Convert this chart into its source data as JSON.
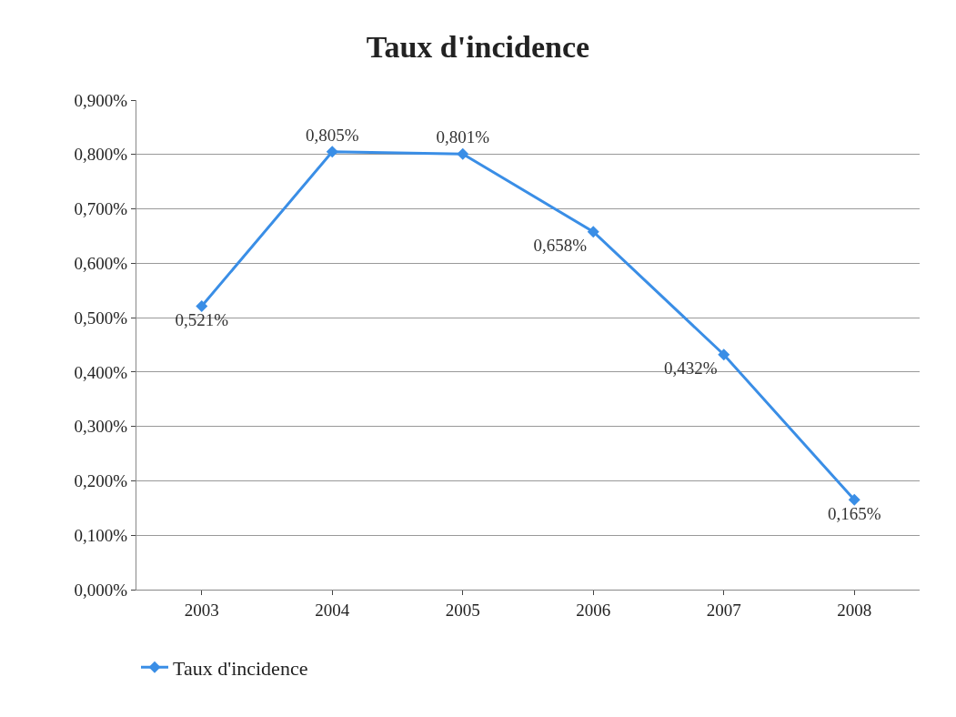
{
  "chart_data": {
    "type": "line",
    "title": "Taux d'incidence",
    "categories": [
      "2003",
      "2004",
      "2005",
      "2006",
      "2007",
      "2008"
    ],
    "series": [
      {
        "name": "Taux d'incidence",
        "color": "#3a8ee6",
        "values": [
          0.521,
          0.805,
          0.801,
          0.658,
          0.432,
          0.165
        ],
        "value_labels": [
          "0,521%",
          "0,805%",
          "0,801%",
          "0,658%",
          "0,432%",
          "0,165%"
        ]
      }
    ],
    "ylim": [
      0,
      0.9
    ],
    "yticks": [
      {
        "value": 0,
        "label": "0,000%"
      },
      {
        "value": 0.1,
        "label": "0,100%"
      },
      {
        "value": 0.2,
        "label": "0,200%"
      },
      {
        "value": 0.3,
        "label": "0,300%"
      },
      {
        "value": 0.4,
        "label": "0,400%"
      },
      {
        "value": 0.5,
        "label": "0,500%"
      },
      {
        "value": 0.6,
        "label": "0,600%"
      },
      {
        "value": 0.7,
        "label": "0,700%"
      },
      {
        "value": 0.8,
        "label": "0,800%"
      },
      {
        "value": 0.9,
        "label": "0,900%"
      }
    ],
    "grid": "y",
    "legend": "bottom left",
    "marker": "diamond",
    "line_style": "solid"
  }
}
